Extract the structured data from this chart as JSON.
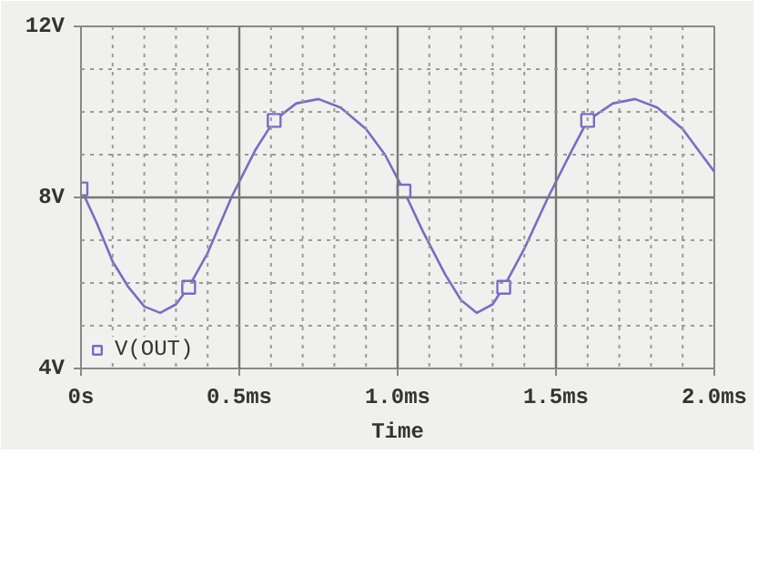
{
  "chart_data": {
    "type": "line",
    "xlabel": "Time",
    "xlim": [
      0,
      2.0
    ],
    "xticks": [
      {
        "value": 0,
        "label": "0s"
      },
      {
        "value": 0.1,
        "label": null
      },
      {
        "value": 0.2,
        "label": null
      },
      {
        "value": 0.3,
        "label": null
      },
      {
        "value": 0.4,
        "label": null
      },
      {
        "value": 0.5,
        "label": "0.5ms"
      },
      {
        "value": 0.6,
        "label": null
      },
      {
        "value": 0.7,
        "label": null
      },
      {
        "value": 0.8,
        "label": null
      },
      {
        "value": 0.9,
        "label": null
      },
      {
        "value": 1.0,
        "label": "1.0ms"
      },
      {
        "value": 1.1,
        "label": null
      },
      {
        "value": 1.2,
        "label": null
      },
      {
        "value": 1.3,
        "label": null
      },
      {
        "value": 1.4,
        "label": null
      },
      {
        "value": 1.5,
        "label": "1.5ms"
      },
      {
        "value": 1.6,
        "label": null
      },
      {
        "value": 1.7,
        "label": null
      },
      {
        "value": 1.8,
        "label": null
      },
      {
        "value": 1.9,
        "label": null
      },
      {
        "value": 2.0,
        "label": "2.0ms"
      }
    ],
    "ylim": [
      4,
      12
    ],
    "yticks": [
      {
        "value": 4,
        "label": "4V"
      },
      {
        "value": 5,
        "label": null
      },
      {
        "value": 6,
        "label": null
      },
      {
        "value": 7,
        "label": null
      },
      {
        "value": 8,
        "label": "8V"
      },
      {
        "value": 9,
        "label": null
      },
      {
        "value": 10,
        "label": null
      },
      {
        "value": 11,
        "label": null
      },
      {
        "value": 12,
        "label": "12V"
      }
    ],
    "grid": true,
    "legend": "bottom left",
    "series": [
      {
        "color": "#7a6cc0",
        "marker": "none",
        "x": [
          0,
          0.05,
          0.1,
          0.15,
          0.2,
          0.25,
          0.3,
          0.34,
          0.4,
          0.475,
          0.55,
          0.61,
          0.68,
          0.75,
          0.82,
          0.9,
          0.96,
          1.02,
          1.08,
          1.15,
          1.2,
          1.25,
          1.3,
          1.335,
          1.4,
          1.475,
          1.55,
          1.6,
          1.68,
          1.75,
          1.82,
          1.9,
          1.96,
          2.0
        ],
        "values": [
          8.2,
          7.4,
          6.5,
          5.9,
          5.45,
          5.3,
          5.5,
          5.9,
          6.7,
          8.0,
          9.1,
          9.8,
          10.2,
          10.3,
          10.1,
          9.6,
          9.0,
          8.15,
          7.2,
          6.2,
          5.6,
          5.3,
          5.5,
          5.9,
          6.8,
          8.0,
          9.1,
          9.8,
          10.2,
          10.3,
          10.1,
          9.6,
          9.0,
          8.6
        ]
      },
      {
        "type": "scatter",
        "name": "V(OUT)",
        "color": "#7a6cc0",
        "marker": "square",
        "x": [
          0,
          0.34,
          0.61,
          1.02,
          1.335,
          1.6
        ],
        "values": [
          8.2,
          5.9,
          9.8,
          8.15,
          5.9,
          9.8
        ]
      }
    ]
  }
}
